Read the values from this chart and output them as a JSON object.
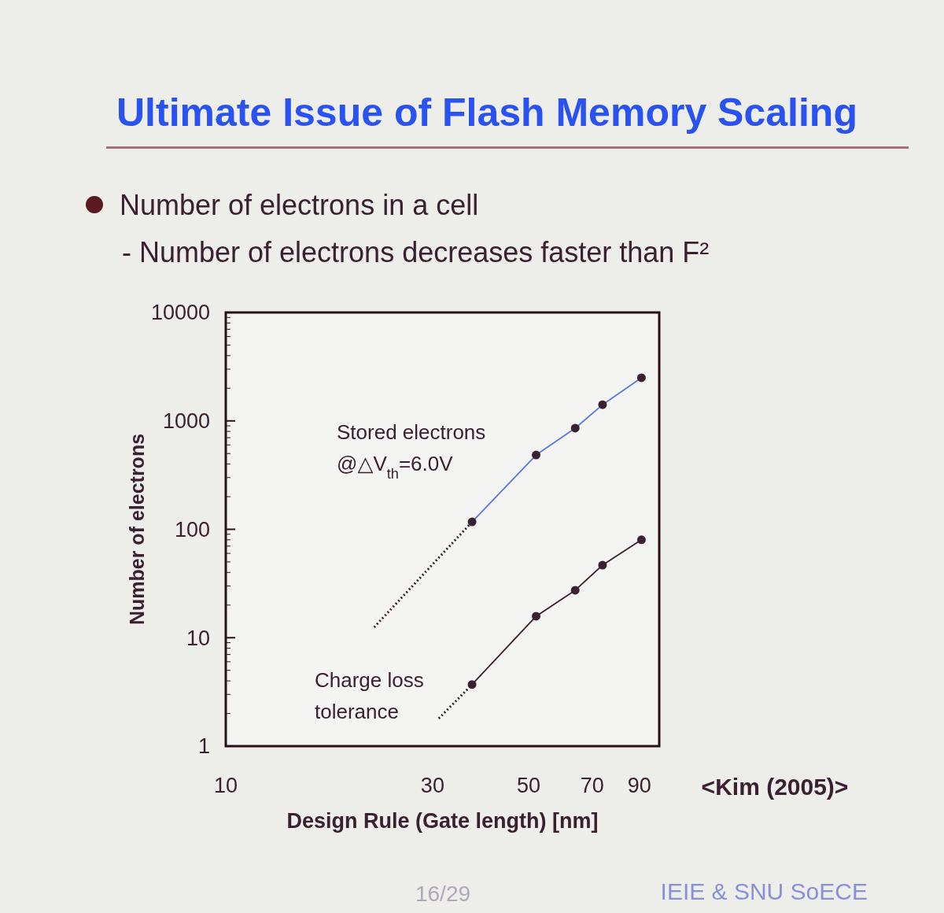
{
  "chart_data": {
    "type": "line",
    "title": "Ultimate Issue of Flash Memory Scaling",
    "subtitle": "Number of electrons in a cell",
    "xlabel": "Design Rule (Gate length) [nm]",
    "ylabel": "Number of electrons",
    "log": "xy",
    "xlim": [
      10,
      100
    ],
    "ylim": [
      1,
      10000
    ],
    "xticks": [
      10,
      30,
      50,
      70,
      90
    ],
    "yticks": [
      1,
      10,
      100,
      1000,
      10000
    ],
    "grid": false,
    "series": [
      {
        "color": "#5a78d8",
        "marker": "circle",
        "line_style": "solid",
        "x": [
          37,
          52,
          64,
          74,
          91
        ],
        "values": [
          117,
          485,
          857,
          1410,
          2500
        ]
      },
      {
        "color": "#3a2030",
        "line_style": "dotted",
        "x": [
          22,
          37
        ],
        "values": [
          12.5,
          117
        ]
      },
      {
        "color": "#3a2030",
        "marker": "circle",
        "line_style": "solid",
        "x": [
          37,
          52,
          64,
          74,
          91
        ],
        "values": [
          3.7,
          15.8,
          27.4,
          46.7,
          80
        ]
      },
      {
        "color": "#3a2030",
        "line_style": "dotted",
        "x": [
          31,
          37
        ],
        "values": [
          1.8,
          3.7
        ]
      }
    ],
    "annotations": [
      "- Number of electrons decreases faster than F²",
      "<Kim (2005)>",
      "16/29",
      "IEIE & SNU SoECE",
      "Stored electrons\n@△V$_{th}$=6.0V",
      "Charge loss\ntolerance"
    ]
  }
}
